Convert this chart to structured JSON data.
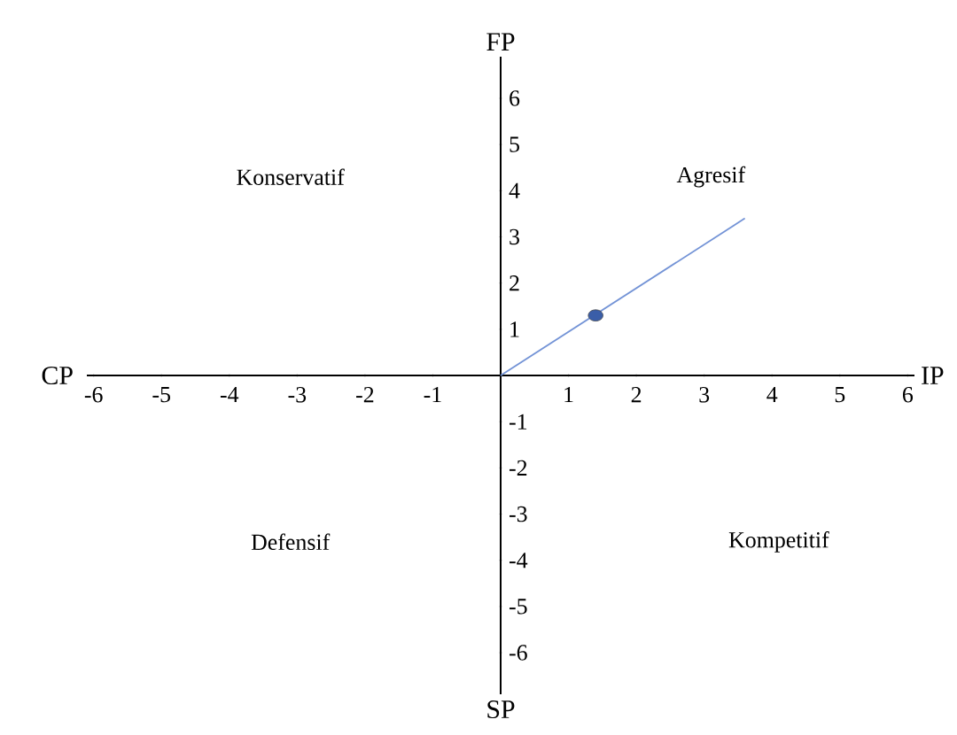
{
  "chart_data": {
    "type": "line",
    "xlabel": "IP",
    "ylabel": "FP",
    "annotations": [
      "CP",
      "SP",
      "Konservatif",
      "Agresif",
      "Defensif",
      "Kompetitif"
    ],
    "series": [
      {
        "color": "#7393d6",
        "x": [
          0,
          3.6
        ],
        "values": [
          0,
          3.4
        ]
      },
      {
        "type": "scatter",
        "color": "#3a5ea8",
        "marker": "circle",
        "x": [
          1.4
        ],
        "values": [
          1.3
        ]
      }
    ],
    "xlim": [
      -6.1,
      6.1
    ],
    "ylim": [
      -6.9,
      6.9
    ],
    "xticks": [
      -6,
      -5,
      -4,
      -3,
      -2,
      -1,
      1,
      2,
      3,
      4,
      5,
      6
    ],
    "yticks": [
      -6,
      -5,
      -4,
      -3,
      -2,
      -1,
      1,
      2,
      3,
      4,
      5,
      6
    ],
    "grid": false
  }
}
